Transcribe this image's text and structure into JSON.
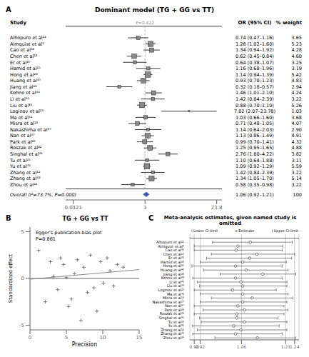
{
  "chart_data": [
    {
      "type": "forest",
      "panel_label": "A",
      "title": "Dominant model (TG + GG vs TT)",
      "annotation": "P=0.422",
      "column_headers": [
        "Study",
        "OR (95% CI)",
        "% weight"
      ],
      "log": "x",
      "xlim": [
        0.03,
        30.0
      ],
      "xticks": [
        0.0421,
        1,
        23.8
      ],
      "reference_x": 1,
      "color": "#888888",
      "studies": [
        {
          "name": "Alhopuro et al²¹",
          "or": 0.74,
          "lo": 0.47,
          "hi": 1.16,
          "weight": 3.65,
          "ci_label": "0.74 (0.47–1.16)",
          "weight_label": "3.65"
        },
        {
          "name": "Almquist et al⁴",
          "or": 1.28,
          "lo": 1.02,
          "hi": 1.6,
          "weight": 5.23,
          "ci_label": "1.28 (1.02–1.60)",
          "weight_label": "5.23"
        },
        {
          "name": "Cao et al⁴³",
          "or": 1.34,
          "lo": 0.94,
          "hi": 1.92,
          "weight": 4.28,
          "ci_label": "1.34 (0.94–1.92)",
          "weight_label": "4.28"
        },
        {
          "name": "Chen et al¹³",
          "or": 0.62,
          "lo": 0.45,
          "hi": 0.84,
          "weight": 4.6,
          "ci_label": "0.62 (0.45–0.84)",
          "weight_label": "4.60"
        },
        {
          "name": "Er et al³⁰",
          "or": 0.64,
          "lo": 0.38,
          "hi": 1.07,
          "weight": 3.25,
          "ci_label": "0.64 (0.38–1.07)",
          "weight_label": "3.25"
        },
        {
          "name": "Hamid et al²⁵",
          "or": 1.16,
          "lo": 0.68,
          "hi": 1.96,
          "weight": 3.19,
          "ci_label": "1.16 (0.68–1.96)",
          "weight_label": "3.19"
        },
        {
          "name": "Hong et al²³",
          "or": 1.14,
          "lo": 0.94,
          "hi": 1.39,
          "weight": 5.42,
          "ci_label": "1.14 (0.94–1.39)",
          "weight_label": "5.42"
        },
        {
          "name": "Huang et al⁴⁰",
          "or": 0.93,
          "lo": 0.7,
          "hi": 1.23,
          "weight": 4.83,
          "ci_label": "0.93 (0.70–1.23)",
          "weight_label": "4.83"
        },
        {
          "name": "Jiang et al²⁶",
          "or": 0.32,
          "lo": 0.18,
          "hi": 0.57,
          "weight": 2.94,
          "ci_label": "0.32 (0.18–0.57)",
          "weight_label": "2.94"
        },
        {
          "name": "Kohno et al⁴⁴",
          "or": 1.46,
          "lo": 1.01,
          "hi": 2.1,
          "weight": 4.24,
          "ci_label": "1.46 (1.01–2.10)",
          "weight_label": "4.24"
        },
        {
          "name": "Li et al⁴⁵",
          "or": 1.42,
          "lo": 0.84,
          "hi": 2.39,
          "weight": 3.22,
          "ci_label": "1.42 (0.84–2.39)",
          "weight_label": "3.22"
        },
        {
          "name": "Liu et al³⁴",
          "or": 0.88,
          "lo": 0.7,
          "hi": 1.1,
          "weight": 5.26,
          "ci_label": "0.88 (0.70–1.10)",
          "weight_label": "5.26"
        },
        {
          "name": "Loginov et al²⁵",
          "or": 7.02,
          "lo": 2.07,
          "hi": 23.78,
          "weight": 1.03,
          "ci_label": "7.02 (2.07–23.78)",
          "weight_label": "1.03"
        },
        {
          "name": "Ma et al⁴²",
          "or": 1.03,
          "lo": 0.66,
          "hi": 1.6,
          "weight": 3.68,
          "ci_label": "1.03 (0.66–1.60)",
          "weight_label": "3.68"
        },
        {
          "name": "Misra et al¹⁸",
          "or": 0.71,
          "lo": 0.48,
          "hi": 1.05,
          "weight": 4.07,
          "ci_label": "0.71 (0.48–1.05)",
          "weight_label": "4.07"
        },
        {
          "name": "Nakashima et al³⁷",
          "or": 1.14,
          "lo": 0.64,
          "hi": 2.03,
          "weight": 2.9,
          "ci_label": "1.14 (0.64–2.03)",
          "weight_label": "2.90"
        },
        {
          "name": "Nan et al⁴⁷",
          "or": 1.13,
          "lo": 0.86,
          "hi": 1.49,
          "weight": 4.91,
          "ci_label": "1.13 (0.86–1.49)",
          "weight_label": "4.91"
        },
        {
          "name": "Park et al²⁶",
          "or": 0.99,
          "lo": 0.7,
          "hi": 1.41,
          "weight": 4.32,
          "ci_label": "0.99 (0.70–1.41)",
          "weight_label": "4.32"
        },
        {
          "name": "Roszak et al³²",
          "or": 1.25,
          "lo": 0.95,
          "hi": 1.65,
          "weight": 4.88,
          "ci_label": "1.25 (0.95–1.65)",
          "weight_label": "4.88"
        },
        {
          "name": "Singhal et al⁴¹",
          "or": 2.76,
          "lo": 1.8,
          "hi": 4.22,
          "weight": 3.82,
          "ci_label": "2.76 (1.80–4.22)",
          "weight_label": "3.82"
        },
        {
          "name": "Tu et al²⁵",
          "or": 1.1,
          "lo": 0.64,
          "hi": 1.88,
          "weight": 3.11,
          "ci_label": "1.10 (0.64–1.88)",
          "weight_label": "3.11"
        },
        {
          "name": "Yu et al⁴¹",
          "or": 1.09,
          "lo": 0.92,
          "hi": 1.29,
          "weight": 5.59,
          "ci_label": "1.09 (0.92–1.29)",
          "weight_label": "5.59"
        },
        {
          "name": "Zhang et al¹²",
          "or": 1.42,
          "lo": 0.84,
          "hi": 2.39,
          "weight": 3.22,
          "ci_label": "1.42 (0.84–2.39)",
          "weight_label": "3.22"
        },
        {
          "name": "Zhang et al⁴⁸",
          "or": 1.34,
          "lo": 1.05,
          "hi": 1.7,
          "weight": 5.14,
          "ci_label": "1.34 (1.05–1.70)",
          "weight_label": "5.14"
        },
        {
          "name": "Zhou et al²⁴",
          "or": 0.58,
          "lo": 0.35,
          "hi": 0.98,
          "weight": 3.22,
          "ci_label": "0.58 (0.35–0.98)",
          "weight_label": "3.22"
        }
      ],
      "overall": {
        "name": "Overall (I²=73.7%, P=0.000)",
        "or": 1.06,
        "lo": 0.92,
        "hi": 1.21,
        "weight": 100,
        "ci_label": "1.06 (0.92–1.21)",
        "color": "#4455bb"
      }
    },
    {
      "type": "scatter",
      "panel_label": "B",
      "title": "TG + GG vs TT",
      "subtitle": "Egger's publication-bias plot",
      "annotation": "P=0.861",
      "xlabel": "Precision",
      "ylabel": "Standardized effect",
      "marker": "+",
      "color": "#777777",
      "grid": false,
      "x": [
        1.2,
        2.1,
        2.8,
        3.2,
        3.8,
        4.2,
        4.6,
        5.0,
        5.3,
        5.7,
        6.1,
        6.5,
        7.0,
        7.4,
        7.9,
        8.3,
        8.8,
        9.2,
        9.7,
        10.1,
        10.6,
        11.0,
        11.5,
        12.0,
        12.8
      ],
      "y": [
        3.0,
        -2.5,
        1.8,
        0.2,
        -1.2,
        2.2,
        1.5,
        0.1,
        -3.0,
        -2.2,
        0.5,
        2.0,
        -4.5,
        1.2,
        -1.5,
        2.5,
        -1.0,
        -3.5,
        1.8,
        -0.5,
        2.2,
        0.8,
        -0.8,
        1.5,
        1.2
      ],
      "line": {
        "x": [
          0,
          15
        ],
        "y": [
          -0.08,
          0.95
        ]
      },
      "reference_y": 0,
      "xlim": [
        0,
        15
      ],
      "ylim": [
        -5.5,
        5.5
      ],
      "xticks": [
        0,
        5,
        10,
        15
      ],
      "yticks": [
        -5,
        0,
        5
      ]
    },
    {
      "type": "interval",
      "panel_label": "C",
      "title": "Meta-analysis estimates, given named study is omitted",
      "header_labels": [
        "I Lower CI limit",
        "o Estimate",
        "I Upper CI limit"
      ],
      "color": "#444444",
      "grid": true,
      "xlim": [
        0.885,
        1.255
      ],
      "xticks": [
        {
          "value": 0.9,
          "label": "0.90"
        },
        0.92,
        1.06,
        1.21,
        1.24
      ],
      "rows": [
        {
          "name": "Alhopuro et al²¹",
          "lo": 0.962,
          "est": 1.09,
          "hi": 1.232
        },
        {
          "name": "Almquist et al⁴",
          "lo": 0.9,
          "est": 1.048,
          "hi": 1.2
        },
        {
          "name": "Cao et al⁴³",
          "lo": 0.9,
          "est": 1.042,
          "hi": 1.198
        },
        {
          "name": "Chen et al¹³",
          "lo": 0.958,
          "est": 1.112,
          "hi": 1.24
        },
        {
          "name": "Er et al³⁰",
          "lo": 0.942,
          "est": 1.088,
          "hi": 1.23
        },
        {
          "name": "Hamid et al²⁵",
          "lo": 0.92,
          "est": 1.064,
          "hi": 1.212
        },
        {
          "name": "Hong et al²³",
          "lo": 0.892,
          "est": 1.04,
          "hi": 1.198
        },
        {
          "name": "Huang et al⁴⁰",
          "lo": 0.932,
          "est": 1.076,
          "hi": 1.218
        },
        {
          "name": "Jiang et al²⁶",
          "lo": 0.988,
          "est": 1.132,
          "hi": 1.244
        },
        {
          "name": "Kohno et al⁴⁴",
          "lo": 0.895,
          "est": 1.04,
          "hi": 1.198
        },
        {
          "name": "Li et al⁴⁵",
          "lo": 0.91,
          "est": 1.058,
          "hi": 1.214
        },
        {
          "name": "Liu et al³⁴",
          "lo": 0.918,
          "est": 1.064,
          "hi": 1.214
        },
        {
          "name": "Loginov et al²⁵",
          "lo": 0.9,
          "est": 1.03,
          "hi": 1.178
        },
        {
          "name": "Ma et al⁴²",
          "lo": 0.92,
          "est": 1.064,
          "hi": 1.218
        },
        {
          "name": "Misra et al¹⁸",
          "lo": 0.958,
          "est": 1.096,
          "hi": 1.234
        },
        {
          "name": "Nakashima et al³⁷",
          "lo": 0.92,
          "est": 1.064,
          "hi": 1.214
        },
        {
          "name": "Nan et al⁴⁷",
          "lo": 0.9,
          "est": 1.048,
          "hi": 1.204
        },
        {
          "name": "Park et al²⁶",
          "lo": 0.93,
          "est": 1.07,
          "hi": 1.218
        },
        {
          "name": "Roszak et al³²",
          "lo": 0.9,
          "est": 1.044,
          "hi": 1.204
        },
        {
          "name": "Singhal et al⁴¹",
          "lo": 0.918,
          "est": 1.044,
          "hi": 1.184
        },
        {
          "name": "Tu et al²⁵",
          "lo": 0.924,
          "est": 1.07,
          "hi": 1.214
        },
        {
          "name": "Yu et al⁴¹",
          "lo": 0.894,
          "est": 1.034,
          "hi": 1.188
        },
        {
          "name": "Zhang et al¹²",
          "lo": 0.91,
          "est": 1.058,
          "hi": 1.214
        },
        {
          "name": "Zhang et al⁴⁸",
          "lo": 0.895,
          "est": 1.04,
          "hi": 1.198
        },
        {
          "name": "Zhou et al²⁴",
          "lo": 0.97,
          "est": 1.114,
          "hi": 1.244
        }
      ]
    }
  ]
}
